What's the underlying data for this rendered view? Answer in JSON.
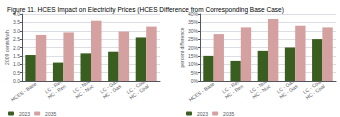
{
  "chart_data": [
    {
      "type": "bar",
      "title": "Figure 11. HCES Impact on Electricity Prices (HCES Difference from Corresponding Base Case)",
      "categories": [
        "HCES - Base",
        "LC - Ren\nHC - Ren",
        "LC - Nuc\nHC - Nuc",
        "LC - Gas\nHC - Gas",
        "LC - Coal\nHC - Coal"
      ],
      "series": [
        {
          "name": "2023",
          "color": "#3a5e1f",
          "values": [
            1.55,
            1.1,
            1.65,
            1.75,
            2.6
          ]
        },
        {
          "name": "2035",
          "color": "#d4a0a0",
          "values": [
            2.75,
            2.9,
            3.6,
            2.95,
            3.25
          ]
        }
      ],
      "ylabel": "2009 cents/kwh",
      "ylim": [
        0,
        4.0
      ],
      "yticks": [
        {
          "value": 0.0,
          "label": "0.0"
        },
        0.5,
        {
          "value": 1.0,
          "label": "1.0"
        },
        1.5,
        {
          "value": 2.0,
          "label": "2.0"
        },
        2.5,
        {
          "value": 3.0,
          "label": "3.0"
        },
        3.5,
        {
          "value": 4.0,
          "label": "4.0"
        }
      ],
      "grid": true,
      "legend": "bottom"
    },
    {
      "type": "bar",
      "categories": [
        "HCES - Base",
        "LC - Ren\nHC - Ren",
        "LC - Nuc\nHC - Nuc",
        "LC - Gas\nHC - Gas",
        "LC - Coal\nHC - Coal"
      ],
      "series": [
        {
          "name": "2023",
          "color": "#3a5e1f",
          "values": [
            15,
            12,
            18,
            20,
            25
          ]
        },
        {
          "name": "2035",
          "color": "#d4a0a0",
          "values": [
            28,
            32,
            37,
            33,
            32
          ]
        }
      ],
      "ylabel": "percent difference",
      "ylim": [
        0,
        40
      ],
      "yticks": [
        {
          "value": 0,
          "label": "0%"
        },
        {
          "value": 5,
          "label": "5%"
        },
        {
          "value": 10,
          "label": "10%"
        },
        {
          "value": 15,
          "label": "15%"
        },
        {
          "value": 20,
          "label": "20%"
        },
        {
          "value": 25,
          "label": "25%"
        },
        {
          "value": 30,
          "label": "30%"
        },
        {
          "value": 35,
          "label": "35%"
        },
        {
          "value": 40,
          "label": "40%"
        }
      ],
      "grid": true,
      "legend": "bottom"
    }
  ]
}
